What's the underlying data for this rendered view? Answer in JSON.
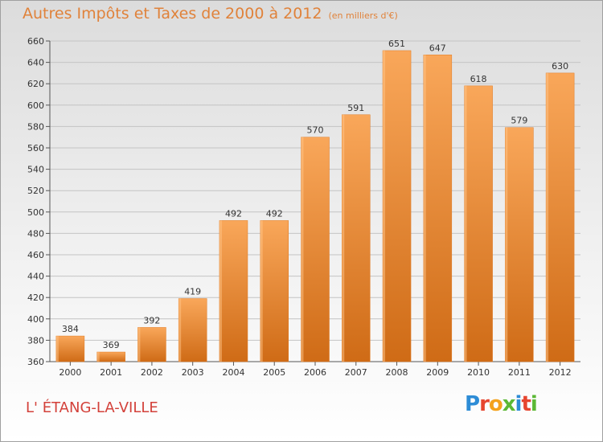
{
  "title": "Autres Impôts et Taxes de 2000 à 2012",
  "unit_note": "(en milliers d'€)",
  "place_name": "L' ÉTANG-LA-VILLE",
  "logo_text": "Proxiti",
  "colors": {
    "bar_light": "#f9a75a",
    "bar_dark": "#cf6b16",
    "title": "#e0823a",
    "place": "#d3413a"
  },
  "chart_data": {
    "type": "bar",
    "title": "Autres Impôts et Taxes de 2000 à 2012",
    "categories": [
      "2000",
      "2001",
      "2002",
      "2003",
      "2004",
      "2005",
      "2006",
      "2007",
      "2008",
      "2009",
      "2010",
      "2011",
      "2012"
    ],
    "values": [
      384,
      369,
      392,
      419,
      492,
      492,
      570,
      591,
      651,
      647,
      618,
      579,
      630
    ],
    "ylim": [
      360,
      660
    ],
    "yticks": [
      360,
      380,
      400,
      420,
      440,
      460,
      480,
      500,
      520,
      540,
      560,
      580,
      600,
      620,
      640,
      660
    ],
    "grid": true,
    "data_labels": true
  }
}
